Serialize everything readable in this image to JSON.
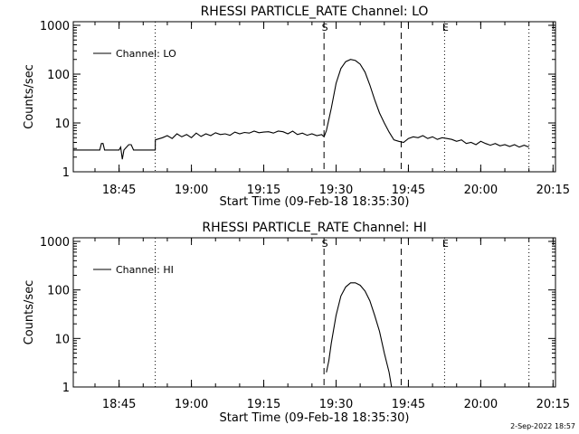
{
  "chart_data": [
    {
      "type": "line",
      "title": "RHESSI PARTICLE_RATE Channel: LO",
      "xlabel": "Start Time (09-Feb-18 18:35:30)",
      "ylabel": "Counts/sec",
      "yscale": "log",
      "xlim": [
        "18:35:30",
        "20:15:30"
      ],
      "ylim": [
        1,
        1000
      ],
      "x_ticks": [
        "18:45",
        "19:00",
        "19:15",
        "19:30",
        "19:45",
        "20:00",
        "20:15"
      ],
      "y_ticks": [
        "1",
        "10",
        "100",
        "1000"
      ],
      "legend": {
        "position": "top-left",
        "label": "Channel: LO"
      },
      "markers": [
        {
          "time": "19:27:30",
          "style": "dashed",
          "label": "S"
        },
        {
          "time": "19:43:30",
          "style": "dashed",
          "label": ""
        },
        {
          "time": "18:52:30",
          "style": "dotted",
          "label": ""
        },
        {
          "time": "19:52:30",
          "style": "dotted",
          "label": "E"
        },
        {
          "time": "20:10:00",
          "style": "dotted",
          "label": ""
        }
      ],
      "series": [
        {
          "name": "Channel: LO",
          "x": [
            "18:35:30",
            "18:41:00",
            "18:41:20",
            "18:41:40",
            "18:42:00",
            "18:44:00",
            "18:45:00",
            "18:45:20",
            "18:45:40",
            "18:46:00",
            "18:47:00",
            "18:47:30",
            "18:48:00",
            "18:52:30",
            "18:52:31",
            "18:54:00",
            "18:55:00",
            "18:56:00",
            "18:57:00",
            "18:58:00",
            "18:59:00",
            "19:00:00",
            "19:01:00",
            "19:02:00",
            "19:03:00",
            "19:04:00",
            "19:05:00",
            "19:06:00",
            "19:07:00",
            "19:08:00",
            "19:09:00",
            "19:10:00",
            "19:11:00",
            "19:12:00",
            "19:13:00",
            "19:14:00",
            "19:15:00",
            "19:16:00",
            "19:17:00",
            "19:18:00",
            "19:19:00",
            "19:20:00",
            "19:21:00",
            "19:22:00",
            "19:23:00",
            "19:24:00",
            "19:25:00",
            "19:26:00",
            "19:27:00",
            "19:27:30",
            "19:28:00",
            "19:29:00",
            "19:30:00",
            "19:31:00",
            "19:32:00",
            "19:33:00",
            "19:34:00",
            "19:35:00",
            "19:36:00",
            "19:37:00",
            "19:38:00",
            "19:39:00",
            "19:40:00",
            "19:41:00",
            "19:42:00",
            "19:43:00",
            "19:44:00",
            "19:45:00",
            "19:46:00",
            "19:47:00",
            "19:48:00",
            "19:49:00",
            "19:50:00",
            "19:51:00",
            "19:52:00",
            "19:53:00",
            "19:54:00",
            "19:55:00",
            "19:56:00",
            "19:57:00",
            "19:58:00",
            "19:59:00",
            "20:00:00",
            "20:01:00",
            "20:02:00",
            "20:03:00",
            "20:04:00",
            "20:05:00",
            "20:06:00",
            "20:07:00",
            "20:08:00",
            "20:09:00",
            "20:10:00"
          ],
          "y": [
            2.8,
            2.8,
            3.8,
            3.8,
            2.8,
            2.8,
            2.8,
            3.2,
            1.8,
            2.8,
            3.6,
            3.6,
            2.8,
            2.8,
            4.5,
            5.0,
            5.5,
            4.8,
            6.0,
            5.2,
            5.8,
            5.0,
            6.2,
            5.3,
            6.0,
            5.5,
            6.3,
            5.8,
            6.0,
            5.6,
            6.5,
            6.0,
            6.4,
            6.2,
            6.8,
            6.3,
            6.5,
            6.6,
            6.2,
            6.8,
            6.6,
            6.0,
            6.8,
            5.8,
            6.2,
            5.6,
            6.0,
            5.5,
            5.8,
            5.2,
            7,
            20,
            65,
            130,
            180,
            200,
            190,
            160,
            110,
            60,
            30,
            16,
            10,
            6.5,
            4.5,
            4.2,
            4.0,
            4.8,
            5.2,
            5.0,
            5.5,
            4.8,
            5.2,
            4.6,
            5.0,
            4.8,
            4.6,
            4.2,
            4.5,
            3.8,
            4.0,
            3.6,
            4.2,
            3.8,
            3.5,
            3.8,
            3.4,
            3.6,
            3.3,
            3.6,
            3.2,
            3.5,
            3.2
          ]
        }
      ]
    },
    {
      "type": "line",
      "title": "RHESSI PARTICLE_RATE Channel: HI",
      "xlabel": "Start Time (09-Feb-18 18:35:30)",
      "ylabel": "Counts/sec",
      "yscale": "log",
      "xlim": [
        "18:35:30",
        "20:15:30"
      ],
      "ylim": [
        1,
        1000
      ],
      "x_ticks": [
        "18:45",
        "19:00",
        "19:15",
        "19:30",
        "19:45",
        "20:00",
        "20:15"
      ],
      "y_ticks": [
        "1",
        "10",
        "100",
        "1000"
      ],
      "legend": {
        "position": "top-left",
        "label": "Channel: HI"
      },
      "markers": [
        {
          "time": "19:27:30",
          "style": "dashed",
          "label": "S"
        },
        {
          "time": "19:43:30",
          "style": "dashed",
          "label": ""
        },
        {
          "time": "18:52:30",
          "style": "dotted",
          "label": ""
        },
        {
          "time": "19:52:30",
          "style": "dotted",
          "label": "E"
        },
        {
          "time": "20:10:00",
          "style": "dotted",
          "label": ""
        }
      ],
      "series": [
        {
          "name": "Channel: HI",
          "x": [
            "19:28:00",
            "19:28:30",
            "19:29:00",
            "19:30:00",
            "19:31:00",
            "19:32:00",
            "19:33:00",
            "19:34:00",
            "19:35:00",
            "19:36:00",
            "19:37:00",
            "19:38:00",
            "19:39:00",
            "19:40:00",
            "19:41:00",
            "19:41:30"
          ],
          "y": [
            2.0,
            3.5,
            8,
            30,
            75,
            115,
            140,
            140,
            125,
            95,
            60,
            30,
            14,
            5,
            2,
            1
          ]
        }
      ]
    }
  ],
  "timestamp": "2-Sep-2022 18:57"
}
